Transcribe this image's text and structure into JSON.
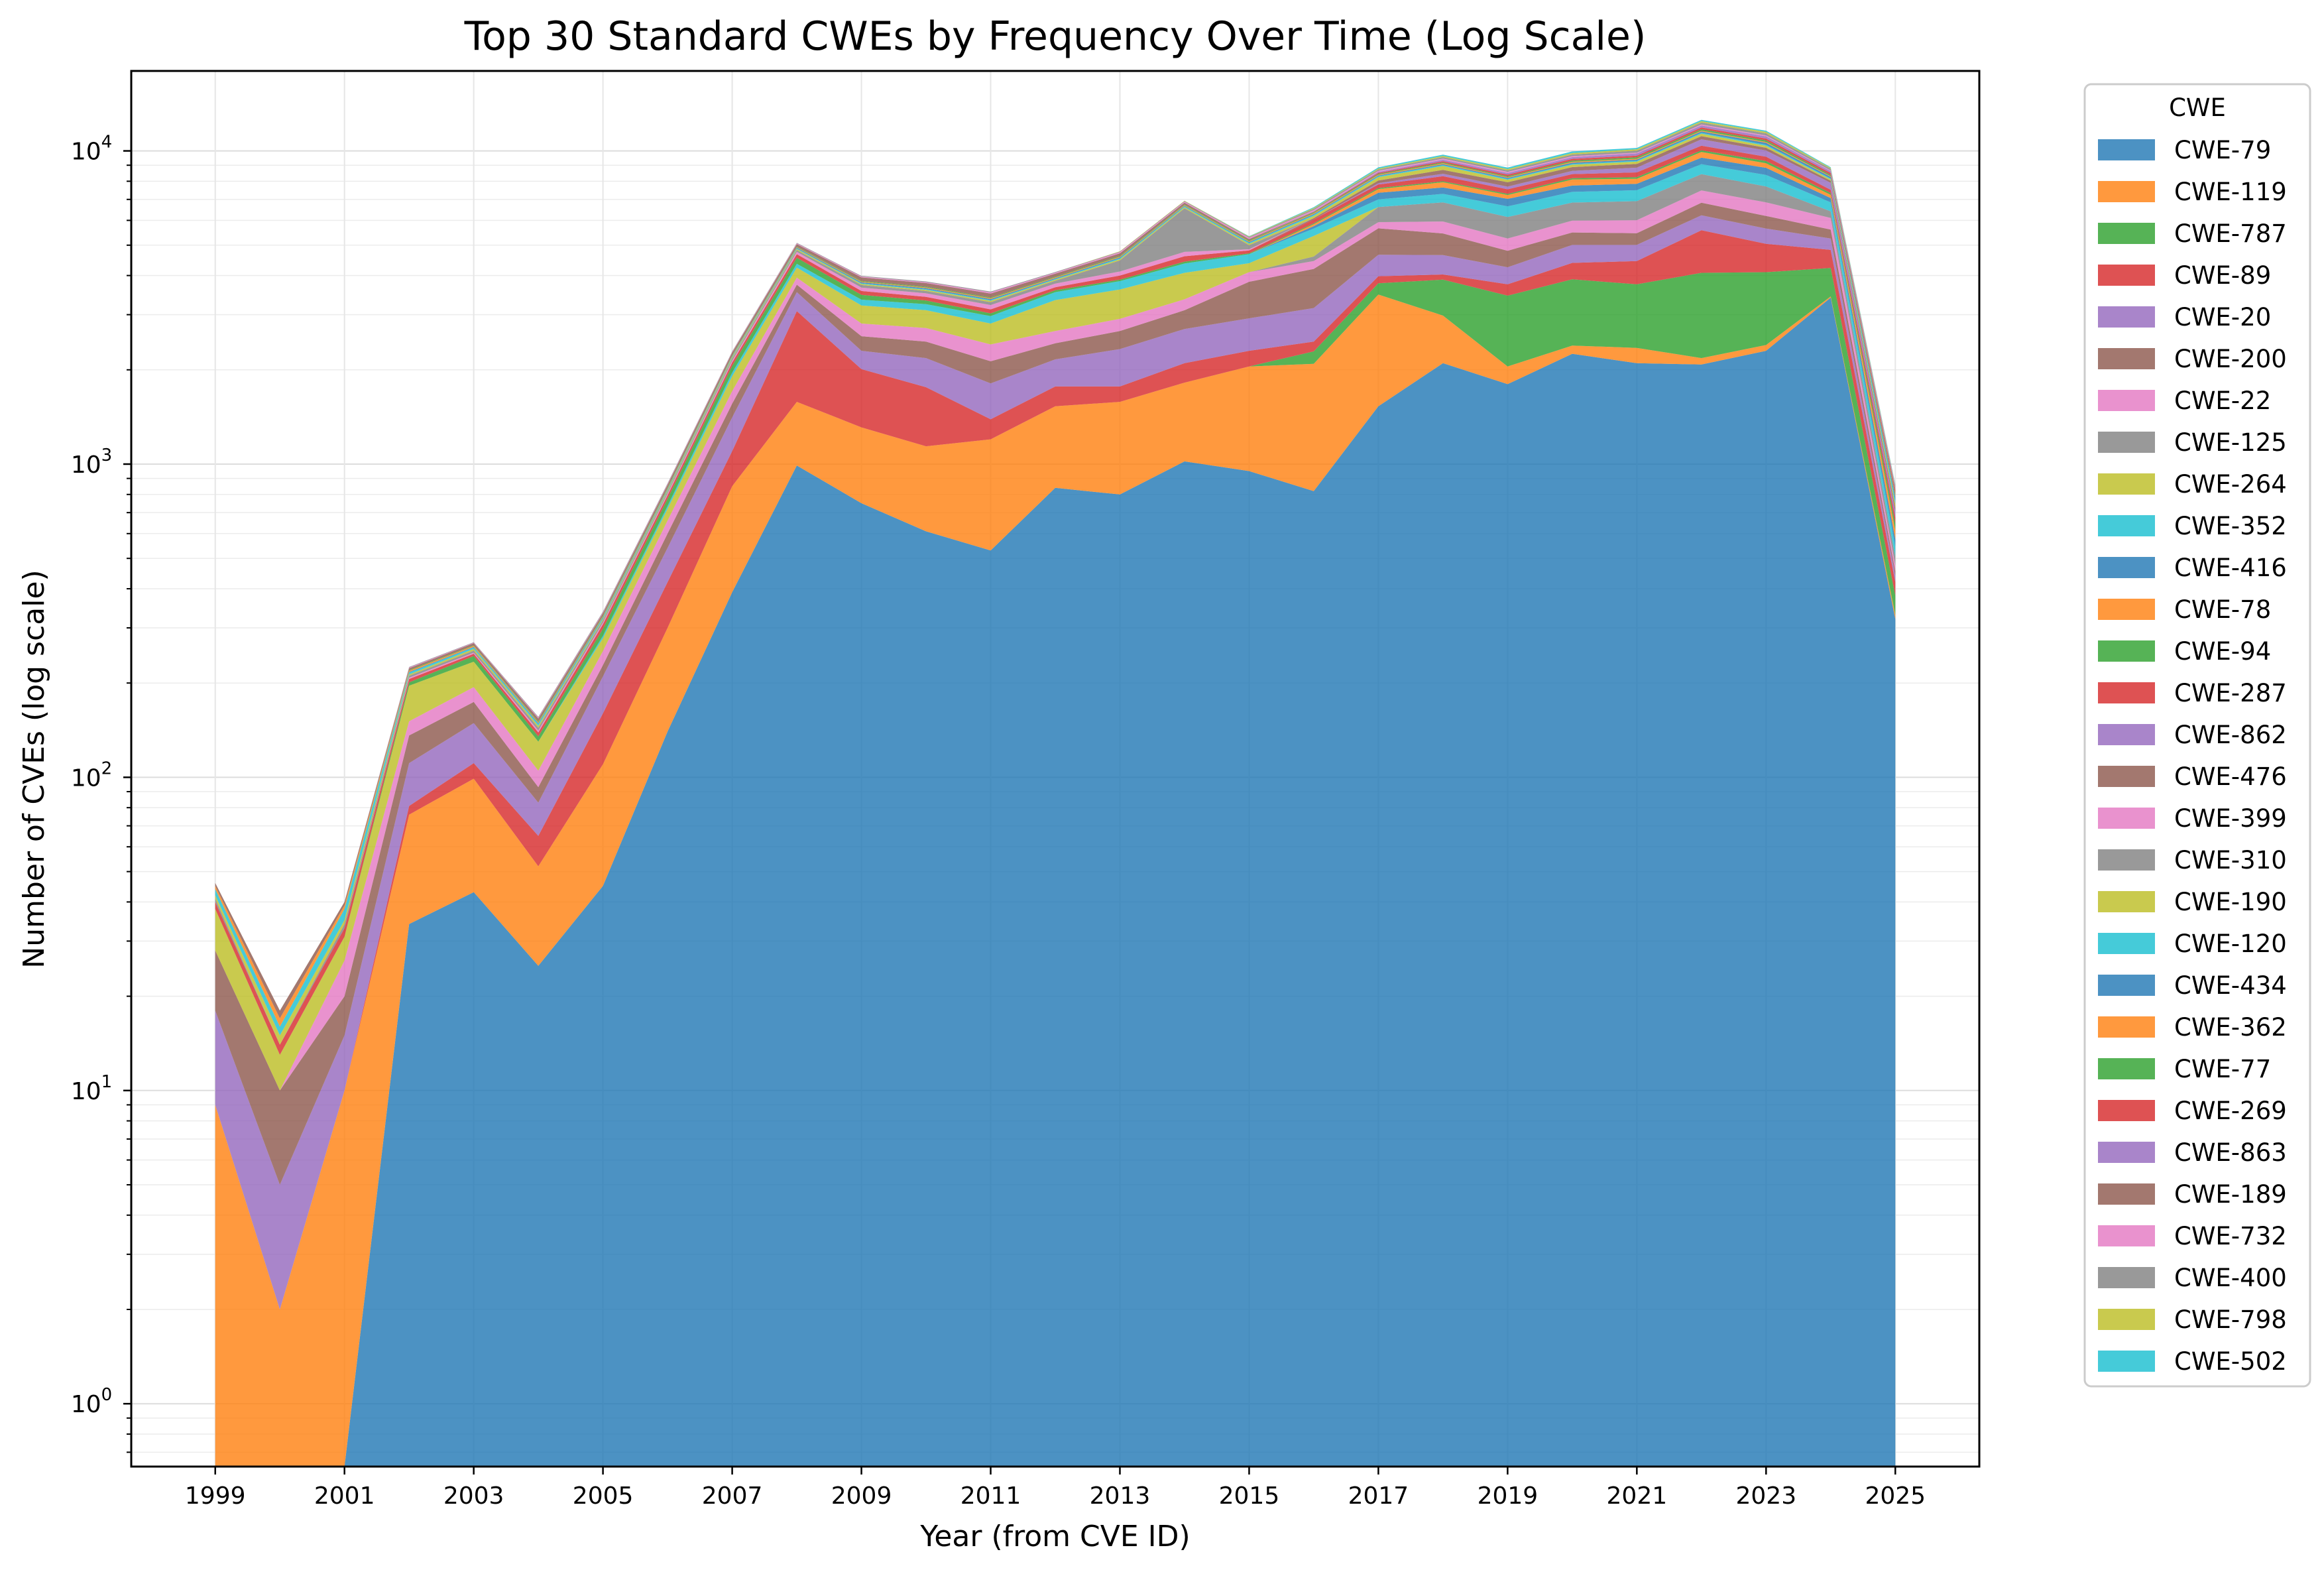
{
  "chart_data": {
    "type": "area",
    "stacked": true,
    "title": "Top 30 Standard CWEs by Frequency Over Time (Log Scale)",
    "xlabel": "Year (from CVE ID)",
    "ylabel": "Number of CVEs (log scale)",
    "yscale": "log",
    "ylim": [
      0.63,
      18000
    ],
    "xlim": [
      1997.7,
      2026.3
    ],
    "grid": true,
    "legend_title": "CWE",
    "legend_placement": "outside-right",
    "x": [
      1999,
      2000,
      2001,
      2002,
      2003,
      2004,
      2005,
      2006,
      2007,
      2008,
      2009,
      2010,
      2011,
      2012,
      2013,
      2014,
      2015,
      2016,
      2017,
      2018,
      2019,
      2020,
      2021,
      2022,
      2023,
      2024,
      2025
    ],
    "x_ticks": [
      "1999",
      "2001",
      "2003",
      "2005",
      "2007",
      "2009",
      "2011",
      "2013",
      "2015",
      "2017",
      "2019",
      "2021",
      "2023",
      "2025"
    ],
    "y_ticks": [
      {
        "base": "10",
        "exp": "0",
        "value": 1
      },
      {
        "base": "10",
        "exp": "1",
        "value": 10
      },
      {
        "base": "10",
        "exp": "2",
        "value": 100
      },
      {
        "base": "10",
        "exp": "3",
        "value": 1000
      },
      {
        "base": "10",
        "exp": "4",
        "value": 10000
      }
    ],
    "series": [
      {
        "name": "CWE-79",
        "color": "#1f77b4",
        "values": [
          0,
          0,
          0,
          34,
          43,
          25,
          45,
          140,
          390,
          990,
          750,
          610,
          530,
          840,
          800,
          1020,
          950,
          820,
          1530,
          2100,
          1800,
          2250,
          2100,
          2080,
          2300,
          3400,
          320
        ]
      },
      {
        "name": "CWE-119",
        "color": "#ff7f0e",
        "values": [
          9,
          2,
          10,
          42,
          56,
          27,
          65,
          160,
          460,
          590,
          560,
          530,
          670,
          690,
          780,
          800,
          1100,
          1270,
          1950,
          880,
          250,
          140,
          250,
          100,
          100,
          30,
          10
        ]
      },
      {
        "name": "CWE-787",
        "color": "#2ca02c",
        "values": [
          0,
          0,
          0,
          0,
          0,
          0,
          0,
          0,
          0,
          0,
          0,
          0,
          0,
          0,
          0,
          0,
          0,
          200,
          300,
          900,
          1400,
          1500,
          1400,
          1900,
          1700,
          800,
          50
        ]
      },
      {
        "name": "CWE-89",
        "color": "#d62728",
        "values": [
          0,
          0,
          0,
          5,
          12,
          13,
          50,
          120,
          250,
          1500,
          700,
          620,
          190,
          240,
          190,
          280,
          250,
          170,
          200,
          150,
          300,
          500,
          700,
          1500,
          950,
          600,
          40
        ]
      },
      {
        "name": "CWE-20",
        "color": "#9467bd",
        "values": [
          9,
          3,
          5,
          30,
          38,
          18,
          50,
          120,
          310,
          460,
          290,
          420,
          420,
          390,
          560,
          600,
          620,
          690,
          680,
          620,
          500,
          620,
          560,
          650,
          600,
          420,
          20
        ]
      },
      {
        "name": "CWE-200",
        "color": "#8c564b",
        "values": [
          10,
          5,
          5,
          25,
          25,
          10,
          18,
          60,
          150,
          200,
          260,
          280,
          320,
          270,
          330,
          400,
          900,
          1050,
          1000,
          800,
          550,
          480,
          450,
          600,
          550,
          360,
          15
        ]
      },
      {
        "name": "CWE-22",
        "color": "#e377c2",
        "values": [
          0,
          0,
          6,
          15,
          20,
          12,
          25,
          60,
          150,
          200,
          250,
          260,
          280,
          230,
          250,
          260,
          280,
          250,
          260,
          500,
          450,
          500,
          550,
          650,
          650,
          500,
          20
        ]
      },
      {
        "name": "CWE-125",
        "color": "#7f7f7f",
        "values": [
          0,
          0,
          0,
          0,
          0,
          0,
          0,
          0,
          0,
          0,
          0,
          0,
          0,
          0,
          0,
          0,
          0,
          150,
          700,
          900,
          900,
          850,
          900,
          950,
          850,
          300,
          30
        ]
      },
      {
        "name": "CWE-264",
        "color": "#bcbd22",
        "values": [
          10,
          3,
          5,
          45,
          40,
          25,
          25,
          60,
          200,
          300,
          400,
          380,
          400,
          680,
          700,
          720,
          280,
          750,
          0,
          0,
          0,
          0,
          0,
          0,
          0,
          0,
          0
        ]
      },
      {
        "name": "CWE-352",
        "color": "#17becf",
        "values": [
          0,
          0,
          0,
          0,
          0,
          0,
          5,
          15,
          50,
          120,
          140,
          140,
          160,
          200,
          230,
          290,
          300,
          300,
          380,
          440,
          500,
          560,
          580,
          640,
          680,
          440,
          40
        ]
      },
      {
        "name": "CWE-416",
        "color": "#1f77b4",
        "values": [
          0,
          0,
          0,
          0,
          0,
          0,
          0,
          0,
          0,
          0,
          0,
          0,
          0,
          0,
          0,
          0,
          0,
          100,
          350,
          350,
          380,
          350,
          360,
          450,
          450,
          220,
          30
        ]
      },
      {
        "name": "CWE-78",
        "color": "#ff7f0e",
        "values": [
          0,
          0,
          0,
          0,
          0,
          0,
          0,
          0,
          0,
          0,
          0,
          0,
          0,
          0,
          0,
          0,
          0,
          80,
          200,
          300,
          200,
          350,
          300,
          400,
          300,
          170,
          40
        ]
      },
      {
        "name": "CWE-94",
        "color": "#2ca02c",
        "values": [
          0,
          0,
          0,
          5,
          10,
          5,
          15,
          40,
          100,
          200,
          120,
          90,
          60,
          50,
          40,
          60,
          30,
          40,
          60,
          60,
          60,
          80,
          90,
          120,
          150,
          90,
          30
        ]
      },
      {
        "name": "CWE-287",
        "color": "#d62728",
        "values": [
          2,
          1,
          2,
          5,
          4,
          4,
          10,
          20,
          50,
          120,
          100,
          90,
          90,
          80,
          120,
          180,
          100,
          170,
          200,
          300,
          250,
          250,
          300,
          350,
          300,
          180,
          30
        ]
      },
      {
        "name": "CWE-862",
        "color": "#9467bd",
        "values": [
          0,
          0,
          0,
          0,
          0,
          0,
          0,
          0,
          0,
          0,
          0,
          0,
          0,
          0,
          0,
          0,
          0,
          0,
          80,
          150,
          150,
          200,
          300,
          500,
          450,
          400,
          30
        ]
      },
      {
        "name": "CWE-476",
        "color": "#8c564b",
        "values": [
          0,
          0,
          0,
          0,
          0,
          0,
          0,
          0,
          0,
          0,
          0,
          0,
          0,
          0,
          0,
          0,
          0,
          60,
          150,
          250,
          250,
          250,
          250,
          250,
          200,
          120,
          20
        ]
      },
      {
        "name": "CWE-399",
        "color": "#e377c2",
        "values": [
          0,
          0,
          0,
          2,
          2,
          2,
          4,
          10,
          30,
          80,
          90,
          90,
          100,
          100,
          120,
          150,
          40,
          0,
          0,
          0,
          0,
          0,
          0,
          0,
          0,
          0,
          0
        ]
      },
      {
        "name": "CWE-310",
        "color": "#7f7f7f",
        "values": [
          1,
          0,
          1,
          3,
          4,
          3,
          5,
          10,
          30,
          60,
          70,
          60,
          70,
          80,
          350,
          1800,
          150,
          0,
          0,
          0,
          0,
          0,
          0,
          0,
          0,
          0,
          0
        ]
      },
      {
        "name": "CWE-190",
        "color": "#bcbd22",
        "values": [
          1,
          1,
          1,
          2,
          3,
          2,
          3,
          8,
          20,
          40,
          30,
          30,
          30,
          30,
          40,
          50,
          50,
          100,
          200,
          250,
          150,
          150,
          150,
          200,
          150,
          80,
          20
        ]
      },
      {
        "name": "CWE-120",
        "color": "#17becf",
        "values": [
          2,
          1,
          3,
          3,
          3,
          2,
          3,
          5,
          10,
          20,
          20,
          20,
          20,
          20,
          30,
          40,
          40,
          50,
          60,
          60,
          50,
          60,
          60,
          80,
          80,
          50,
          20
        ]
      },
      {
        "name": "CWE-434",
        "color": "#1f77b4",
        "values": [
          0,
          0,
          0,
          1,
          1,
          1,
          2,
          5,
          10,
          30,
          25,
          25,
          25,
          25,
          30,
          35,
          30,
          40,
          50,
          60,
          60,
          80,
          80,
          120,
          150,
          100,
          20
        ]
      },
      {
        "name": "CWE-362",
        "color": "#ff7f0e",
        "values": [
          1,
          1,
          1,
          2,
          2,
          1,
          2,
          5,
          10,
          20,
          20,
          20,
          20,
          20,
          25,
          30,
          30,
          40,
          50,
          60,
          50,
          60,
          60,
          70,
          70,
          40,
          10
        ]
      },
      {
        "name": "CWE-77",
        "color": "#2ca02c",
        "values": [
          0,
          0,
          0,
          1,
          1,
          1,
          2,
          5,
          10,
          20,
          20,
          20,
          20,
          20,
          25,
          30,
          30,
          40,
          50,
          60,
          50,
          80,
          100,
          120,
          120,
          80,
          10
        ]
      },
      {
        "name": "CWE-269",
        "color": "#d62728",
        "values": [
          0,
          0,
          0,
          0,
          0,
          0,
          0,
          0,
          0,
          0,
          0,
          0,
          0,
          0,
          0,
          0,
          0,
          20,
          60,
          80,
          100,
          120,
          120,
          150,
          150,
          120,
          20
        ]
      },
      {
        "name": "CWE-863",
        "color": "#9467bd",
        "values": [
          0,
          0,
          0,
          0,
          0,
          0,
          0,
          0,
          0,
          0,
          0,
          0,
          0,
          0,
          0,
          0,
          0,
          20,
          60,
          100,
          100,
          120,
          150,
          180,
          180,
          120,
          10
        ]
      },
      {
        "name": "CWE-189",
        "color": "#8c564b",
        "values": [
          1,
          1,
          1,
          3,
          4,
          3,
          5,
          15,
          40,
          90,
          100,
          100,
          100,
          90,
          90,
          90,
          50,
          0,
          0,
          0,
          0,
          0,
          0,
          0,
          0,
          0,
          0
        ]
      },
      {
        "name": "CWE-732",
        "color": "#e377c2",
        "values": [
          0,
          0,
          0,
          1,
          1,
          1,
          2,
          5,
          10,
          25,
          25,
          25,
          30,
          30,
          40,
          50,
          50,
          60,
          70,
          80,
          70,
          70,
          60,
          80,
          70,
          40,
          5
        ]
      },
      {
        "name": "CWE-400",
        "color": "#7f7f7f",
        "values": [
          0,
          0,
          0,
          1,
          1,
          1,
          2,
          5,
          10,
          20,
          20,
          20,
          20,
          20,
          20,
          30,
          30,
          60,
          80,
          100,
          100,
          120,
          150,
          180,
          180,
          100,
          10
        ]
      },
      {
        "name": "CWE-798",
        "color": "#bcbd22",
        "values": [
          0,
          0,
          0,
          0,
          0,
          0,
          0,
          0,
          0,
          0,
          0,
          0,
          0,
          0,
          10,
          20,
          20,
          40,
          60,
          80,
          80,
          100,
          100,
          120,
          120,
          60,
          5
        ]
      },
      {
        "name": "CWE-502",
        "color": "#17becf",
        "values": [
          0,
          0,
          0,
          0,
          0,
          0,
          0,
          0,
          0,
          0,
          0,
          0,
          0,
          0,
          0,
          0,
          10,
          40,
          80,
          100,
          100,
          120,
          100,
          120,
          100,
          50,
          5
        ]
      }
    ]
  }
}
